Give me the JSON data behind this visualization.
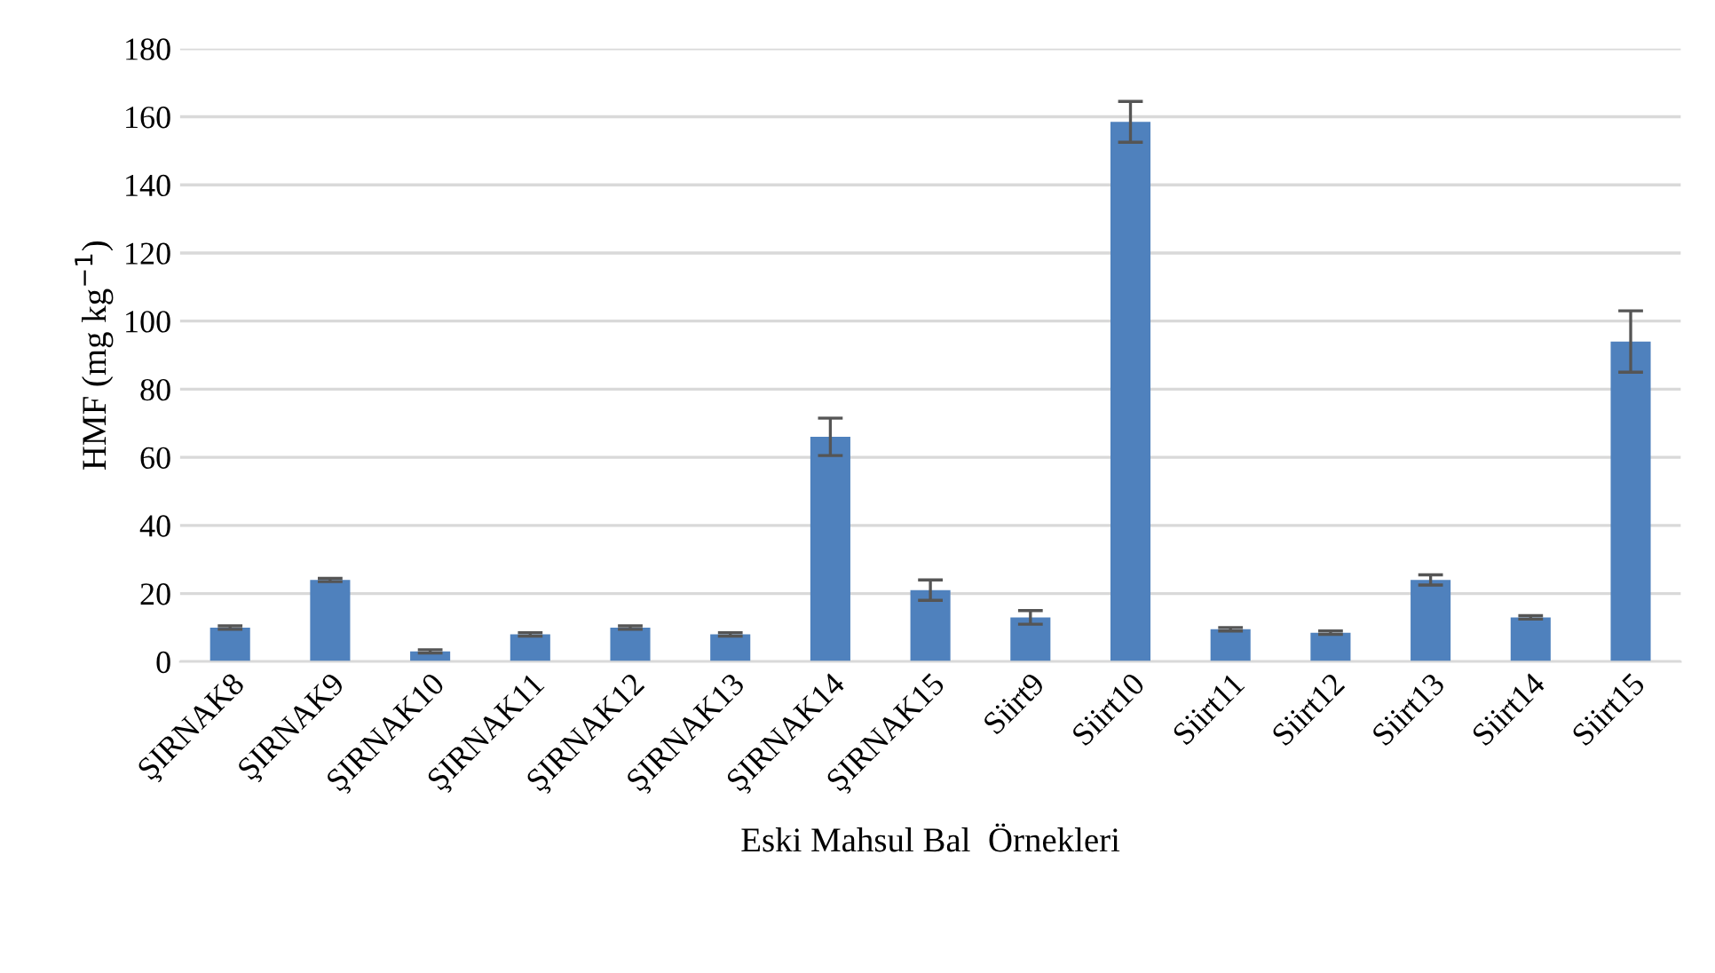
{
  "chart_data": {
    "type": "bar",
    "xlabel": "Eski Mahsul Bal  Örnekleri",
    "ylabel": "HMF (mg kg$^{−1}$)",
    "categories": [
      "ŞIRNAK8",
      "ŞIRNAK9",
      "ŞIRNAK10",
      "ŞIRNAK11",
      "ŞIRNAK12",
      "ŞIRNAK13",
      "ŞIRNAK14",
      "ŞIRNAK15",
      "Siirt9",
      "Siirt10",
      "Siirt11",
      "Siirt12",
      "Siirt13",
      "Siirt14",
      "Siirt15"
    ],
    "series": [
      {
        "color": "#4f81bd",
        "values": [
          10,
          24,
          3,
          8,
          10,
          8,
          66,
          21,
          13,
          158.5,
          9.5,
          8.5,
          24,
          13,
          94
        ],
        "errors": [
          0.5,
          0.5,
          0.5,
          0.5,
          0.5,
          0.5,
          5.5,
          3,
          2,
          6,
          0.5,
          0.5,
          1.5,
          0.5,
          9
        ]
      }
    ],
    "ylim": [
      0,
      180
    ],
    "yticks": [
      0,
      20,
      40,
      60,
      80,
      100,
      120,
      140,
      160,
      180
    ],
    "grid": "y",
    "legend": false
  }
}
